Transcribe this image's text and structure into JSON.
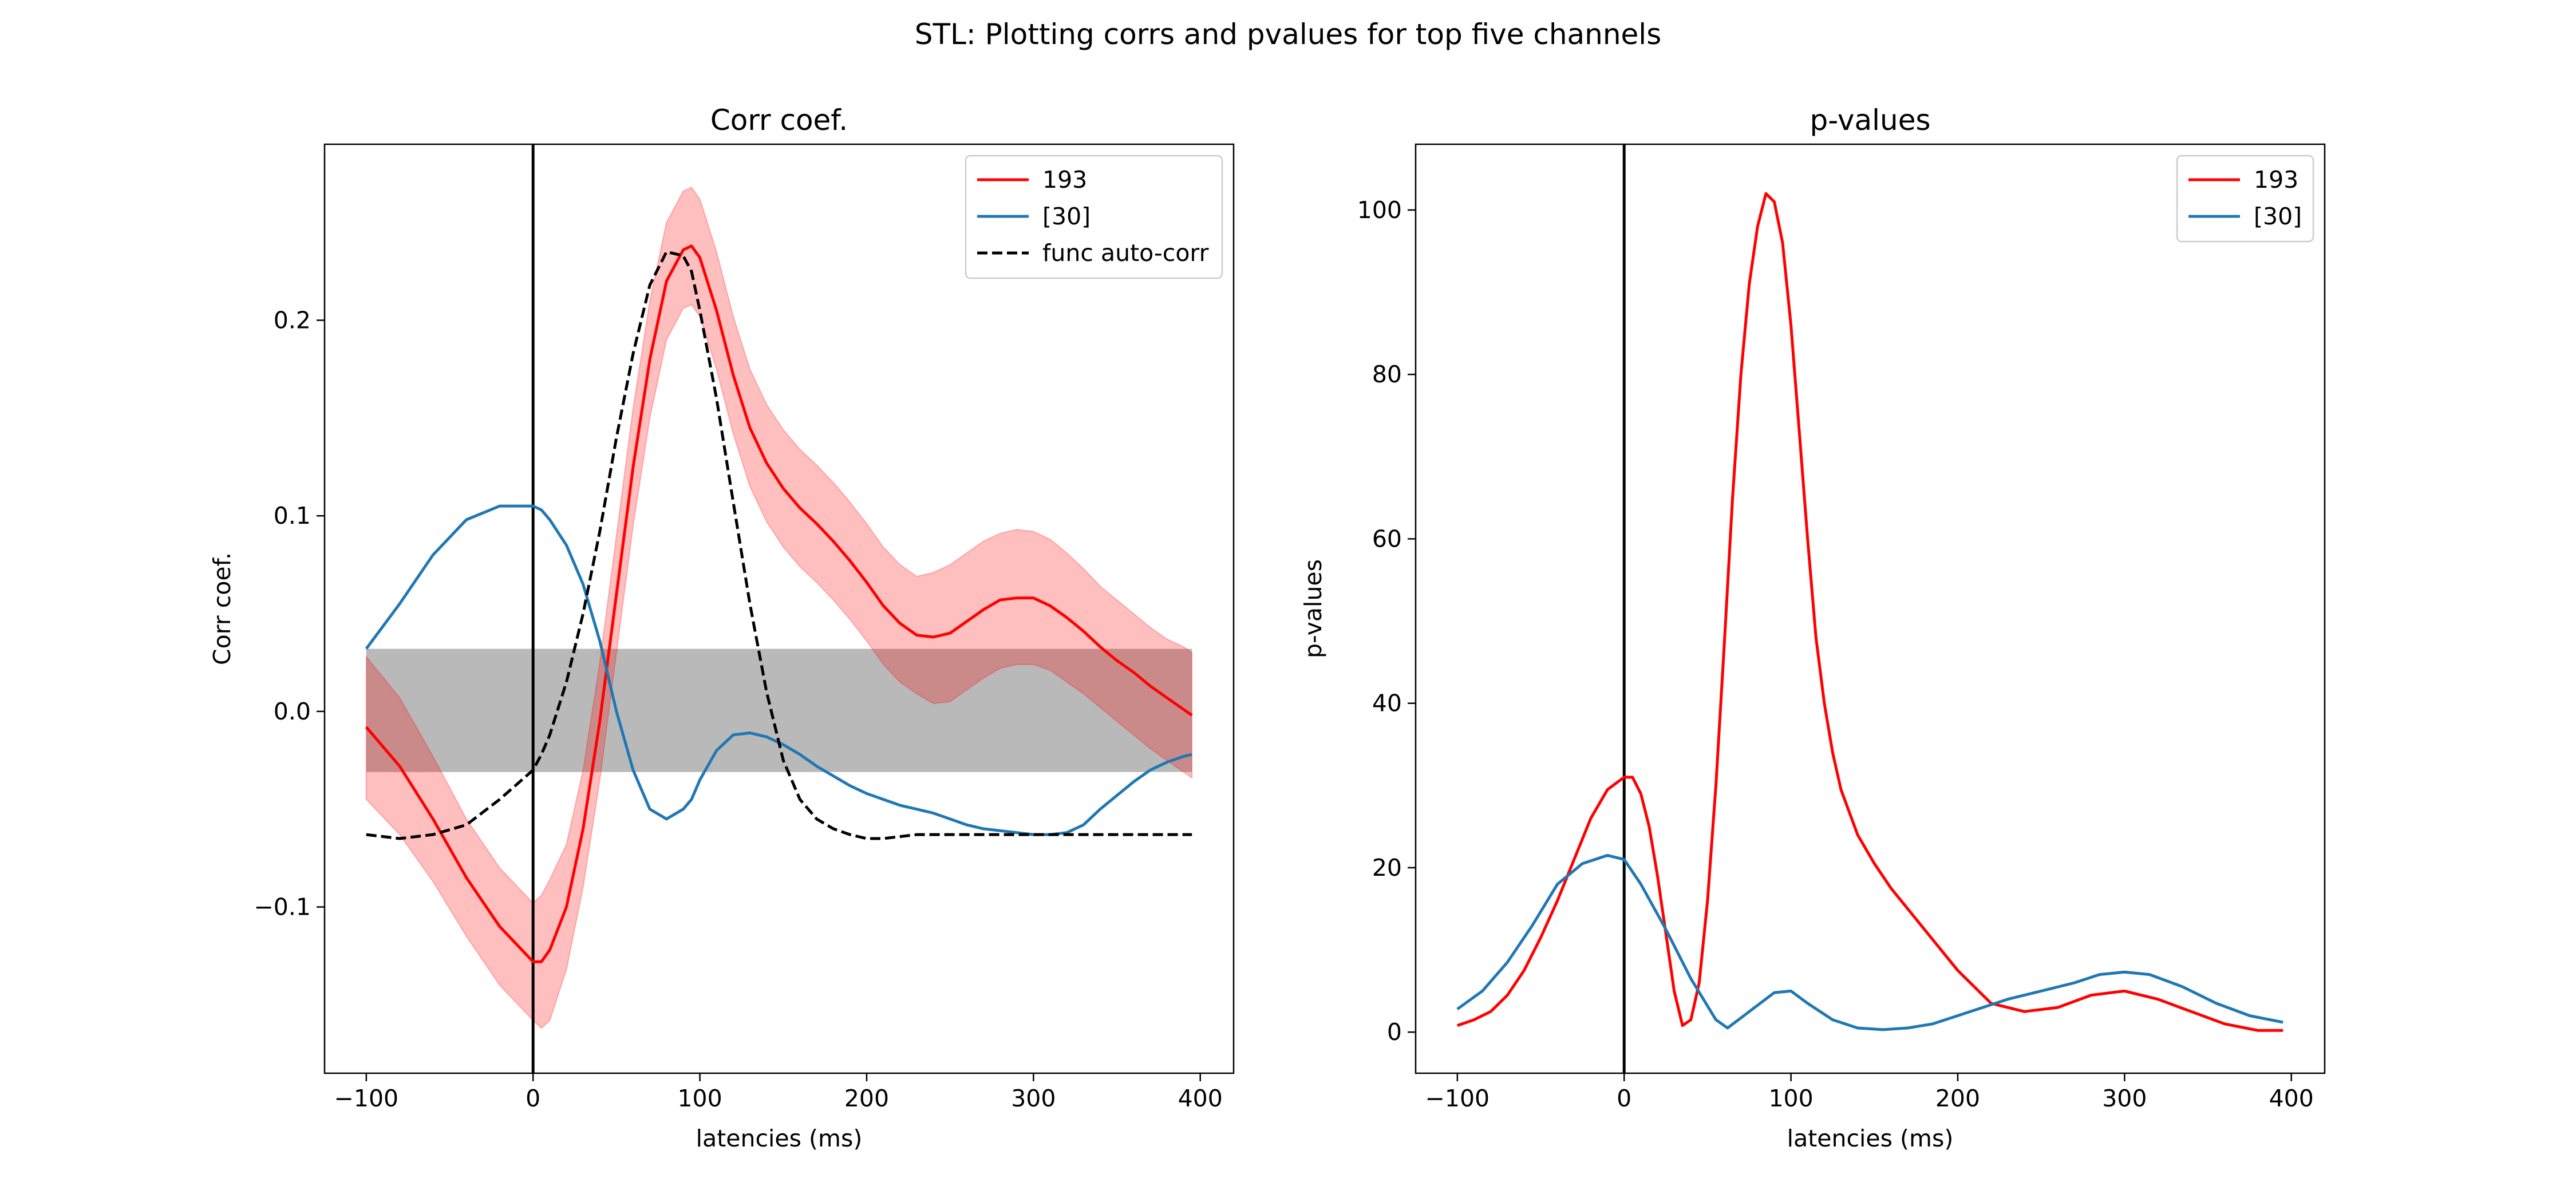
{
  "figure": {
    "title": "STL: Plotting corrs and pvalues for top five channels"
  },
  "colors": {
    "red": "#ff0000",
    "blue": "#1f77b4",
    "black": "#000000",
    "red_band": "#ff0000",
    "gray_band": "#808080"
  },
  "chart_data": [
    {
      "type": "line",
      "title": "Corr coef.",
      "xlabel": "latencies (ms)",
      "ylabel": "Corr coef.",
      "xlim": [
        -125,
        420
      ],
      "ylim": [
        -0.185,
        0.29
      ],
      "xticks": [
        -100,
        0,
        100,
        200,
        300,
        400
      ],
      "xtick_labels": [
        "−100",
        "0",
        "100",
        "200",
        "300",
        "400"
      ],
      "yticks": [
        -0.1,
        0.0,
        0.1,
        0.2
      ],
      "ytick_labels": [
        "−0.1",
        "0.0",
        "0.1",
        "0.2"
      ],
      "vline_x": 0,
      "grid": false,
      "legend_position": "upper right",
      "x": [
        -100,
        -80,
        -60,
        -40,
        -20,
        0,
        5,
        10,
        20,
        30,
        40,
        50,
        60,
        70,
        80,
        90,
        95,
        100,
        110,
        120,
        130,
        140,
        150,
        160,
        170,
        180,
        190,
        200,
        210,
        220,
        230,
        240,
        250,
        260,
        270,
        280,
        290,
        300,
        310,
        320,
        330,
        340,
        350,
        360,
        370,
        380,
        390,
        395
      ],
      "series": [
        {
          "name": "193",
          "color": "red",
          "style": "solid",
          "values": [
            -0.008,
            -0.028,
            -0.055,
            -0.085,
            -0.11,
            -0.128,
            -0.128,
            -0.122,
            -0.1,
            -0.06,
            -0.005,
            0.06,
            0.125,
            0.18,
            0.22,
            0.236,
            0.238,
            0.232,
            0.205,
            0.172,
            0.145,
            0.127,
            0.114,
            0.104,
            0.096,
            0.087,
            0.077,
            0.066,
            0.054,
            0.045,
            0.039,
            0.038,
            0.04,
            0.046,
            0.052,
            0.057,
            0.058,
            0.058,
            0.054,
            0.048,
            0.041,
            0.033,
            0.026,
            0.02,
            0.013,
            0.007,
            0.001,
            -0.002
          ],
          "band_lower": [
            -0.045,
            -0.063,
            -0.087,
            -0.115,
            -0.14,
            -0.158,
            -0.162,
            -0.158,
            -0.132,
            -0.09,
            -0.035,
            0.03,
            0.095,
            0.15,
            0.19,
            0.206,
            0.208,
            0.202,
            0.175,
            0.142,
            0.115,
            0.097,
            0.084,
            0.074,
            0.066,
            0.057,
            0.047,
            0.036,
            0.024,
            0.015,
            0.009,
            0.004,
            0.005,
            0.011,
            0.017,
            0.022,
            0.024,
            0.024,
            0.021,
            0.015,
            0.009,
            0.002,
            -0.005,
            -0.012,
            -0.019,
            -0.025,
            -0.031,
            -0.034
          ],
          "band_upper": [
            0.028,
            0.007,
            -0.023,
            -0.055,
            -0.08,
            -0.098,
            -0.094,
            -0.086,
            -0.068,
            -0.03,
            0.025,
            0.09,
            0.155,
            0.21,
            0.25,
            0.266,
            0.268,
            0.262,
            0.235,
            0.202,
            0.175,
            0.157,
            0.144,
            0.134,
            0.126,
            0.117,
            0.107,
            0.096,
            0.084,
            0.075,
            0.069,
            0.071,
            0.075,
            0.081,
            0.087,
            0.091,
            0.093,
            0.092,
            0.088,
            0.081,
            0.073,
            0.064,
            0.057,
            0.05,
            0.043,
            0.037,
            0.033,
            0.03
          ]
        },
        {
          "name": "[30]",
          "color": "blue",
          "style": "solid",
          "values": [
            0.032,
            0.055,
            0.08,
            0.098,
            0.105,
            0.105,
            0.103,
            0.098,
            0.085,
            0.065,
            0.036,
            0.0,
            -0.03,
            -0.05,
            -0.055,
            -0.05,
            -0.045,
            -0.035,
            -0.02,
            -0.012,
            -0.011,
            -0.013,
            -0.017,
            -0.022,
            -0.028,
            -0.033,
            -0.038,
            -0.042,
            -0.045,
            -0.048,
            -0.05,
            -0.052,
            -0.055,
            -0.058,
            -0.06,
            -0.061,
            -0.062,
            -0.063,
            -0.063,
            -0.062,
            -0.058,
            -0.05,
            -0.043,
            -0.036,
            -0.03,
            -0.026,
            -0.023,
            -0.022
          ]
        },
        {
          "name": "func auto-corr",
          "color": "black",
          "style": "dashed",
          "values": [
            -0.063,
            -0.065,
            -0.063,
            -0.058,
            -0.045,
            -0.03,
            -0.022,
            -0.012,
            0.015,
            0.05,
            0.092,
            0.14,
            0.183,
            0.218,
            0.235,
            0.233,
            0.225,
            0.205,
            0.16,
            0.107,
            0.055,
            0.01,
            -0.025,
            -0.045,
            -0.055,
            -0.06,
            -0.063,
            -0.065,
            -0.065,
            -0.064,
            -0.063,
            -0.063,
            -0.063,
            -0.063,
            -0.063,
            -0.063,
            -0.063,
            -0.063,
            -0.063,
            -0.063,
            -0.063,
            -0.063,
            -0.063,
            -0.063,
            -0.063,
            -0.063,
            -0.063,
            -0.063
          ]
        }
      ],
      "gray_band": {
        "x": [
          -100,
          395
        ],
        "lower": -0.031,
        "upper": 0.032
      },
      "legend": [
        "193",
        "[30]",
        "func auto-corr"
      ]
    },
    {
      "type": "line",
      "title": "p-values",
      "xlabel": "latencies (ms)",
      "ylabel": "p-values",
      "xlim": [
        -125,
        420
      ],
      "ylim": [
        -5,
        108
      ],
      "xticks": [
        -100,
        0,
        100,
        200,
        300,
        400
      ],
      "xtick_labels": [
        "−100",
        "0",
        "100",
        "200",
        "300",
        "400"
      ],
      "yticks": [
        0,
        20,
        40,
        60,
        80,
        100
      ],
      "ytick_labels": [
        "0",
        "20",
        "40",
        "60",
        "80",
        "100"
      ],
      "vline_x": 0,
      "grid": false,
      "legend_position": "upper right",
      "series": [
        {
          "name": "193",
          "color": "red",
          "style": "solid",
          "x": [
            -100,
            -90,
            -80,
            -70,
            -60,
            -50,
            -40,
            -30,
            -20,
            -10,
            0,
            5,
            10,
            15,
            20,
            25,
            30,
            35,
            40,
            45,
            50,
            55,
            60,
            65,
            70,
            75,
            80,
            85,
            90,
            95,
            100,
            105,
            110,
            115,
            120,
            125,
            130,
            140,
            150,
            160,
            180,
            200,
            220,
            240,
            260,
            280,
            300,
            320,
            340,
            360,
            380,
            395
          ],
          "values": [
            0.8,
            1.5,
            2.5,
            4.5,
            7.5,
            11.5,
            16,
            21,
            26,
            29.5,
            31,
            31,
            29,
            25,
            19,
            12,
            5,
            0.8,
            1.5,
            6,
            16,
            30,
            47,
            65,
            80,
            91,
            98,
            102,
            101,
            96,
            86,
            73,
            60,
            48,
            40,
            34,
            29.5,
            24,
            20.5,
            17.5,
            12.5,
            7.5,
            3.5,
            2.5,
            3,
            4.5,
            5,
            4,
            2.5,
            1,
            0.2,
            0.2
          ]
        },
        {
          "name": "[30]",
          "color": "blue",
          "style": "solid",
          "values": [
            2.8,
            5,
            8.5,
            13,
            18,
            20.5,
            21.5,
            21,
            18,
            12.5,
            6.5,
            1.5,
            0.5,
            2.5,
            4.8,
            5,
            3.5,
            1.5,
            0.5,
            0.3,
            0.5,
            1,
            2,
            3,
            4,
            5,
            6,
            7,
            7.3,
            7,
            5.5,
            3.5,
            2,
            1.2
          ],
          "x": [
            -100,
            -85,
            -70,
            -55,
            -40,
            -25,
            -10,
            0,
            10,
            25,
            40,
            55,
            62,
            75,
            90,
            100,
            110,
            125,
            140,
            155,
            170,
            185,
            200,
            215,
            230,
            250,
            270,
            285,
            300,
            315,
            335,
            355,
            375,
            395
          ]
        }
      ],
      "legend": [
        "193",
        "[30]"
      ]
    }
  ]
}
